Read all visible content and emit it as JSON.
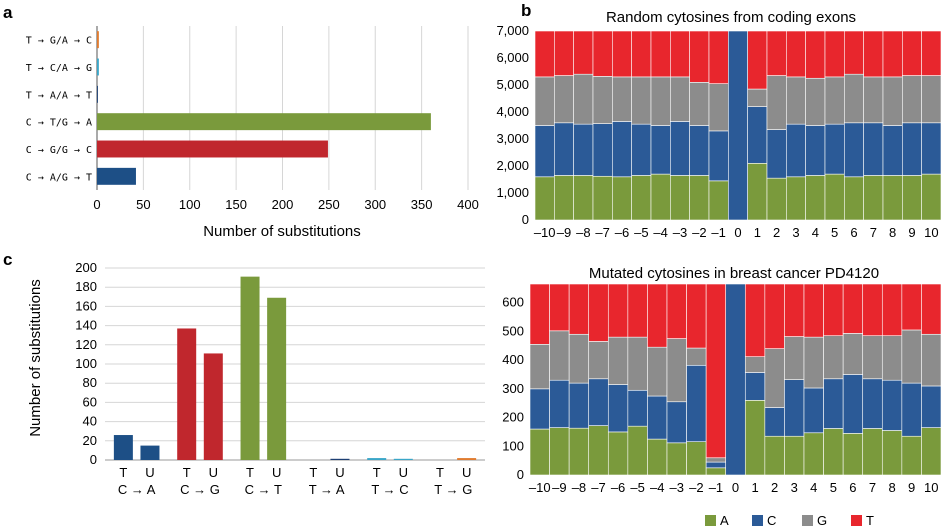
{
  "panels": {
    "a": "a",
    "b": "b",
    "c": "c"
  },
  "colors": {
    "A": "#7a9a3c",
    "C": "#2b5a97",
    "G": "#8c8c8c",
    "T": "#e8262d",
    "grid": "#d6d6d6"
  },
  "chart_data": [
    {
      "id": "a",
      "type": "bar",
      "orientation": "horizontal",
      "categories": [
        "T → G/A → C",
        "T → C/A → G",
        "T → A/A → T",
        "C → T/G → A",
        "C → G/G → C",
        "C → A/G → T"
      ],
      "values": [
        2,
        2,
        1,
        360,
        249,
        42
      ],
      "colors": [
        "#e07b2f",
        "#3aa6c8",
        "#1d3f73",
        "#7a9a3c",
        "#c0272d",
        "#1d4f86"
      ],
      "xlabel": "Number of substitutions",
      "xlim": [
        0,
        400
      ],
      "xticks": [
        "0",
        "50",
        "100",
        "150",
        "200",
        "250",
        "300",
        "350",
        "400"
      ],
      "grid": true
    },
    {
      "id": "b1",
      "type": "bar",
      "stacked": true,
      "title": "Random cytosines from coding exons",
      "categories": [
        "–10",
        "–9",
        "–8",
        "–7",
        "–6",
        "–5",
        "–4",
        "–3",
        "–2",
        "–1",
        "0",
        "1",
        "2",
        "3",
        "4",
        "5",
        "6",
        "7",
        "8",
        "9",
        "10"
      ],
      "stack_order": [
        "A",
        "C",
        "G",
        "T"
      ],
      "series": [
        {
          "name": "A",
          "values": [
            1600,
            1650,
            1650,
            1620,
            1600,
            1650,
            1700,
            1650,
            1650,
            1450,
            0,
            2100,
            1550,
            1600,
            1650,
            1700,
            1600,
            1650,
            1650,
            1650,
            1700
          ]
        },
        {
          "name": "C",
          "values": [
            1900,
            1950,
            1900,
            1950,
            2050,
            1900,
            1800,
            2000,
            1850,
            1850,
            7000,
            2100,
            1800,
            1950,
            1850,
            1850,
            2000,
            1950,
            1850,
            1950,
            1900
          ]
        },
        {
          "name": "G",
          "values": [
            1800,
            1750,
            1850,
            1750,
            1650,
            1750,
            1800,
            1650,
            1600,
            1750,
            0,
            650,
            2000,
            1750,
            1750,
            1750,
            1800,
            1700,
            1800,
            1750,
            1750
          ]
        },
        {
          "name": "T",
          "values": [
            1700,
            1650,
            1600,
            1680,
            1700,
            1700,
            1700,
            1700,
            1900,
            1950,
            0,
            2150,
            1650,
            1700,
            1750,
            1700,
            1600,
            1700,
            1700,
            1650,
            1650
          ]
        }
      ],
      "ylim": [
        0,
        7000
      ],
      "yticks": [
        "0",
        "1,000",
        "2,000",
        "3,000",
        "4,000",
        "5,000",
        "6,000",
        "7,000"
      ]
    },
    {
      "id": "b2",
      "type": "bar",
      "stacked": true,
      "title": "Mutated cytosines in breast cancer PD4120",
      "categories": [
        "–10",
        "–9",
        "–8",
        "–7",
        "–6",
        "–5",
        "–4",
        "–3",
        "–2",
        "–1",
        "0",
        "1",
        "2",
        "3",
        "4",
        "5",
        "6",
        "7",
        "8",
        "9",
        "10"
      ],
      "stack_order": [
        "A",
        "C",
        "G",
        "T"
      ],
      "series": [
        {
          "name": "A",
          "values": [
            160,
            165,
            163,
            172,
            150,
            170,
            125,
            112,
            116,
            25,
            0,
            260,
            135,
            135,
            147,
            162,
            145,
            162,
            155,
            135,
            165
          ]
        },
        {
          "name": "C",
          "values": [
            140,
            165,
            157,
            163,
            165,
            125,
            150,
            143,
            266,
            20,
            665,
            97,
            100,
            197,
            156,
            173,
            205,
            173,
            175,
            185,
            145
          ]
        },
        {
          "name": "G",
          "values": [
            155,
            172,
            170,
            130,
            165,
            185,
            170,
            220,
            60,
            15,
            0,
            55,
            205,
            150,
            177,
            150,
            143,
            150,
            155,
            185,
            180
          ]
        },
        {
          "name": "T",
          "values": [
            210,
            163,
            175,
            200,
            185,
            185,
            220,
            190,
            223,
            605,
            0,
            253,
            225,
            183,
            185,
            180,
            172,
            180,
            180,
            160,
            175
          ]
        }
      ],
      "ylim": [
        0,
        665
      ],
      "yticks": [
        "0",
        "100",
        "200",
        "300",
        "400",
        "500",
        "600"
      ]
    },
    {
      "id": "c",
      "type": "bar",
      "categories": [
        "C → A",
        "C → G",
        "C → T",
        "T → A",
        "T → C",
        "T → G"
      ],
      "bar_labels": [
        "T",
        "U"
      ],
      "values": [
        [
          26,
          15
        ],
        [
          137,
          111
        ],
        [
          191,
          169
        ],
        [
          0,
          1
        ],
        [
          2,
          1
        ],
        [
          0,
          2
        ]
      ],
      "colors": [
        "#1d4f86",
        "#c0272d",
        "#7a9a3c",
        "#1d3f73",
        "#3aa6c8",
        "#e07b2f"
      ],
      "ylabel": "Number of substitutions",
      "ylim": [
        0,
        200
      ],
      "yticks": [
        "0",
        "20",
        "40",
        "60",
        "80",
        "100",
        "120",
        "140",
        "160",
        "180",
        "200"
      ],
      "grid": true
    }
  ],
  "legend": [
    {
      "key": "A",
      "label": "A"
    },
    {
      "key": "C",
      "label": "C"
    },
    {
      "key": "G",
      "label": "G"
    },
    {
      "key": "T",
      "label": "T"
    }
  ]
}
